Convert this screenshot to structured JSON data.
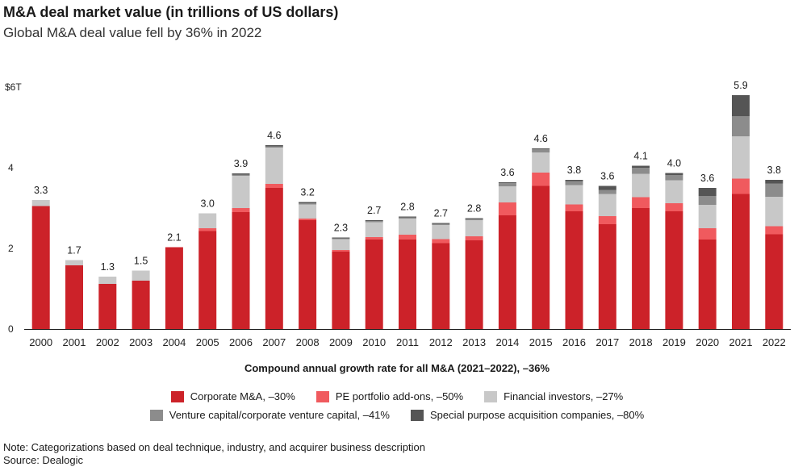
{
  "header": {
    "title": "M&A deal market value (in trillions of US dollars)",
    "subtitle": "Global M&A deal value fell by 36% in 2022"
  },
  "colors": {
    "corporate": "#cc2229",
    "pe": "#f05a5e",
    "financial": "#c8c8c8",
    "vc": "#8c8c8c",
    "spac": "#555555"
  },
  "chart_data": {
    "type": "bar",
    "stacked": true,
    "title": "M&A deal market value (in trillions of US dollars)",
    "ylim": [
      0,
      6
    ],
    "yticks": [
      {
        "value": 0,
        "label": "0"
      },
      {
        "value": 2,
        "label": "2"
      },
      {
        "value": 4,
        "label": "4"
      },
      {
        "value": 6,
        "label": "$6T"
      }
    ],
    "categories": [
      "2000",
      "2001",
      "2002",
      "2003",
      "2004",
      "2005",
      "2006",
      "2007",
      "2008",
      "2009",
      "2010",
      "2011",
      "2012",
      "2013",
      "2014",
      "2015",
      "2016",
      "2017",
      "2018",
      "2019",
      "2020",
      "2021",
      "2022"
    ],
    "totals": [
      "3.3",
      "1.7",
      "1.3",
      "1.5",
      "2.1",
      "3.0",
      "3.9",
      "4.6",
      "3.2",
      "2.3",
      "2.7",
      "2.8",
      "2.7",
      "2.8",
      "3.6",
      "4.6",
      "3.8",
      "3.6",
      "4.1",
      "4.0",
      "3.6",
      "5.9",
      "3.8"
    ],
    "series": [
      {
        "key": "corporate",
        "name": "Corporate M&A, –30%",
        "values": [
          3.05,
          1.58,
          1.12,
          1.2,
          2.03,
          2.43,
          2.9,
          3.5,
          2.7,
          1.92,
          2.22,
          2.22,
          2.13,
          2.2,
          2.82,
          3.55,
          2.92,
          2.6,
          3.0,
          2.92,
          2.22,
          3.35,
          2.35
        ]
      },
      {
        "key": "pe",
        "name": "PE portfolio add-ons, –50%",
        "values": [
          0,
          0,
          0,
          0,
          0,
          0.07,
          0.1,
          0.1,
          0.04,
          0.04,
          0.06,
          0.12,
          0.1,
          0.1,
          0.32,
          0.33,
          0.17,
          0.2,
          0.27,
          0.2,
          0.28,
          0.38,
          0.2
        ]
      },
      {
        "key": "financial",
        "name": "Financial investors, –27%",
        "values": [
          0.15,
          0.13,
          0.18,
          0.25,
          0,
          0.37,
          0.8,
          0.9,
          0.35,
          0.27,
          0.37,
          0.4,
          0.35,
          0.4,
          0.4,
          0.5,
          0.48,
          0.55,
          0.58,
          0.57,
          0.58,
          1.05,
          0.73
        ]
      },
      {
        "key": "vc",
        "name": "Venture capital/corporate venture capital, –41%",
        "values": [
          0,
          0,
          0,
          0,
          0,
          0,
          0.03,
          0.03,
          0.03,
          0.02,
          0.03,
          0.03,
          0.03,
          0.03,
          0.08,
          0.08,
          0.1,
          0.1,
          0.15,
          0.13,
          0.22,
          0.5,
          0.33
        ]
      },
      {
        "key": "spac",
        "name": "Special purpose acquisition companies, –80%",
        "values": [
          0,
          0,
          0,
          0,
          0,
          0,
          0.03,
          0.03,
          0.03,
          0.02,
          0.02,
          0.02,
          0.02,
          0.02,
          0.02,
          0.02,
          0.03,
          0.1,
          0.05,
          0.05,
          0.2,
          0.52,
          0.09
        ]
      }
    ]
  },
  "cagr": "Compound annual growth rate for all M&A (2021–2022), –36%",
  "legend": {
    "row1": [
      "Corporate M&A, –30%",
      "PE portfolio add-ons, –50%",
      "Financial investors, –27%"
    ],
    "row2": [
      "Venture capital/corporate venture capital, –41%",
      "Special purpose acquisition companies, –80%"
    ]
  },
  "footer": {
    "note": "Note: Categorizations based on deal technique, industry, and acquirer business description",
    "source": "Source: Dealogic"
  }
}
